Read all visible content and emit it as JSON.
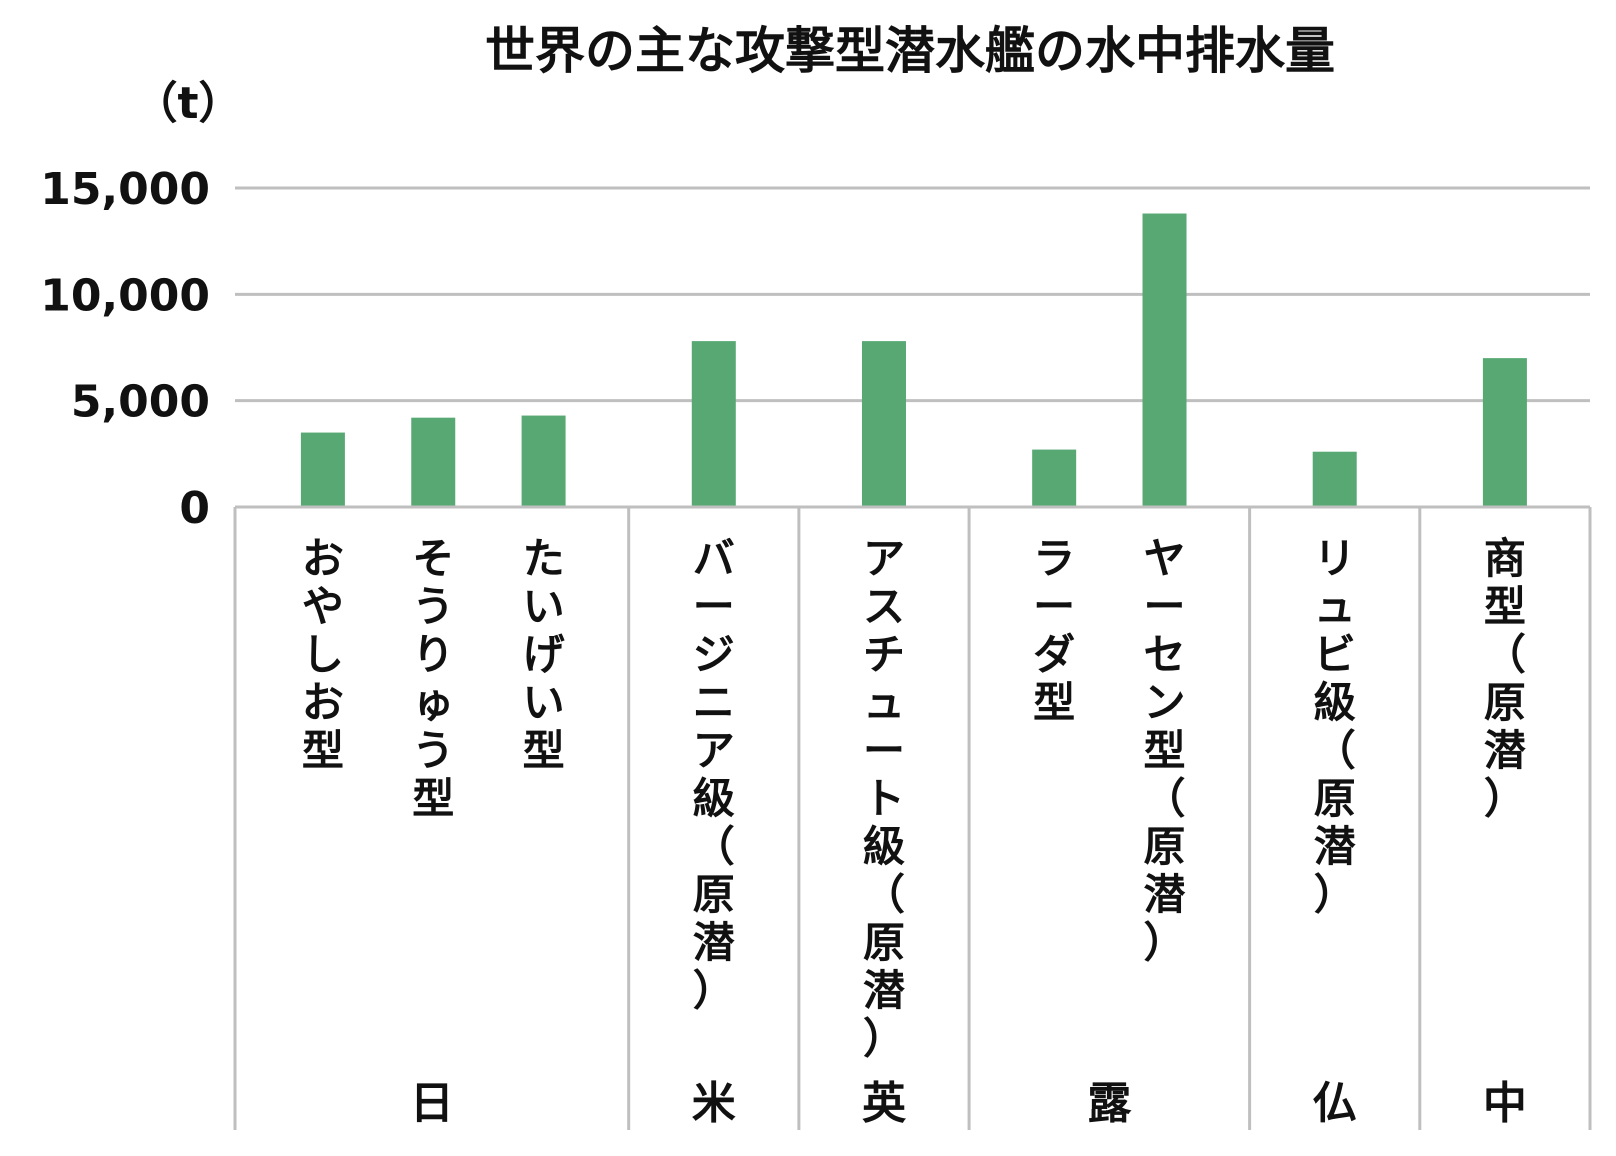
{
  "chart_data": {
    "type": "bar",
    "title": "世界の主な攻撃型潜水艦の水中排水量",
    "ylabel": "（t）",
    "xlabel": "",
    "ylim": [
      0,
      15000
    ],
    "yticks": [
      0,
      5000,
      10000,
      15000
    ],
    "ytick_labels": [
      "0",
      "5,000",
      "10,000",
      "15,000"
    ],
    "grid": true,
    "categories": [
      "おやしお型",
      "そうりゅう型",
      "たいげい型",
      "バージニア級（原潜）",
      "アスチュート級（原潜）",
      "ラーダ型",
      "ヤーセン型（原潜）",
      "リュビ級（原潜）",
      "商型（原潜）"
    ],
    "values": [
      3500,
      4200,
      4300,
      7800,
      7800,
      2700,
      13800,
      2600,
      7000
    ],
    "groups": [
      {
        "label": "日",
        "count": 3
      },
      {
        "label": "米",
        "count": 1
      },
      {
        "label": "英",
        "count": 1
      },
      {
        "label": "露",
        "count": 2
      },
      {
        "label": "仏",
        "count": 1
      },
      {
        "label": "中",
        "count": 1
      }
    ],
    "bar_color": "#57a873",
    "grid_color": "#bfbfbf"
  }
}
